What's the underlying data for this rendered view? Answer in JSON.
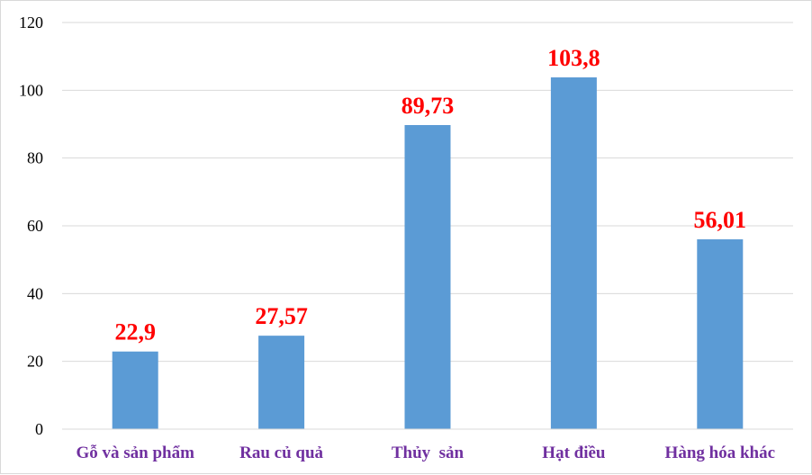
{
  "chart_data": {
    "type": "bar",
    "categories": [
      "Gỗ và sản phẩm",
      "Rau củ quả",
      "Thủy  sản",
      "Hạt điều",
      "Hàng hóa khác"
    ],
    "values": [
      22.9,
      27.57,
      89.73,
      103.8,
      56.01
    ],
    "data_labels": [
      "22,9",
      "27,57",
      "89,73",
      "103,8",
      "56,01"
    ],
    "y_ticks": [
      "0",
      "20",
      "40",
      "60",
      "80",
      "100",
      "120"
    ],
    "ylim": [
      0,
      120
    ],
    "grid": true,
    "legend": "none",
    "colors": {
      "bar": "#5b9bd5",
      "data_label": "#ff0000",
      "category_label": "#7030a0",
      "gridline": "#d9d9d9"
    }
  }
}
